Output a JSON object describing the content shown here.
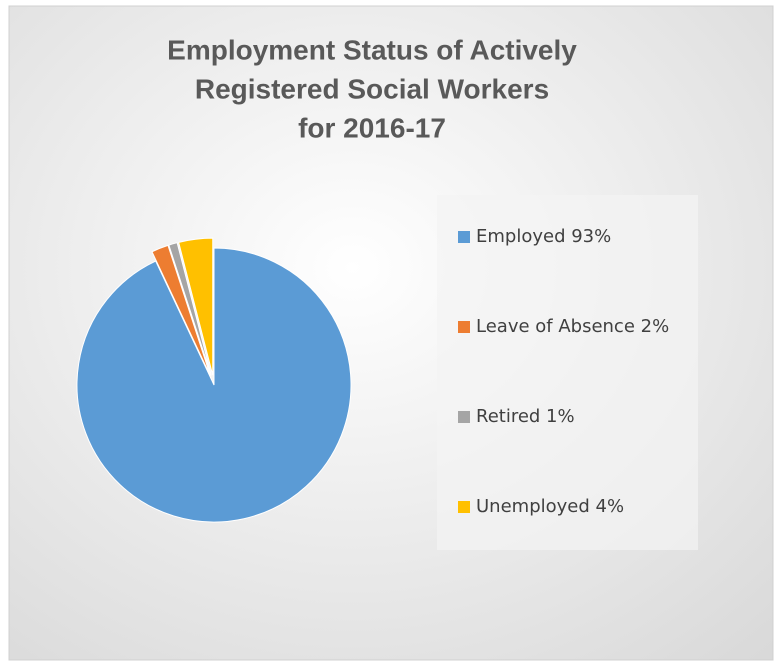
{
  "chart_data": {
    "type": "pie",
    "title": [
      "Employment Status of Actively",
      "Registered Social Workers",
      "for 2016-17"
    ],
    "categories": [
      "Employed 93%",
      "Leave of Absence 2%",
      "Retired 1%",
      "Unemployed 4%"
    ],
    "values": [
      93,
      2,
      1,
      4
    ],
    "colors": [
      "#5b9bd5",
      "#ed7d31",
      "#a5a5a5",
      "#ffc000"
    ],
    "legend": "right"
  }
}
